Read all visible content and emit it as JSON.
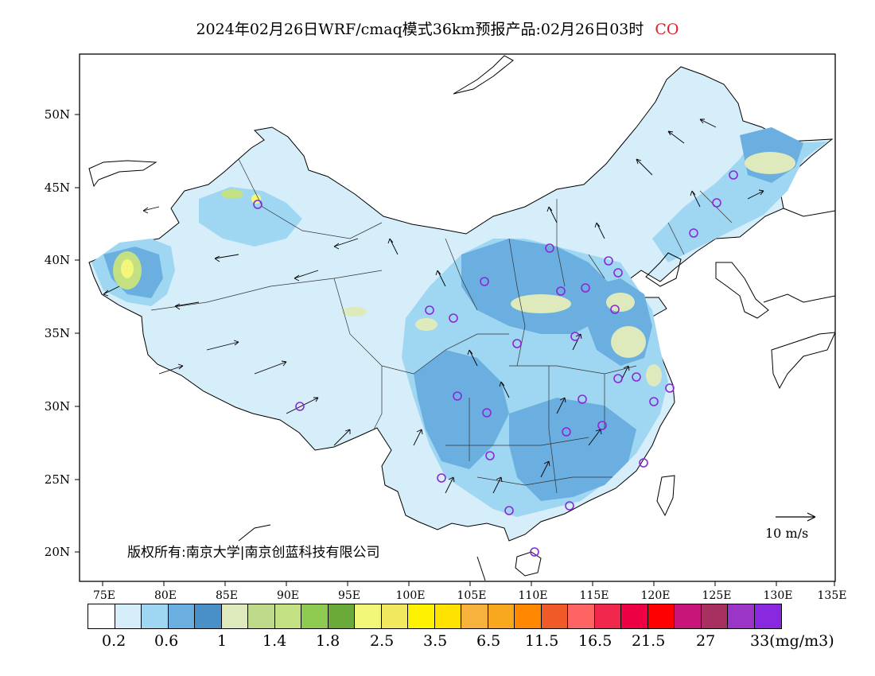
{
  "title": {
    "text": "2024年02月26日WRF/cmaq模式36km预报产品:02月26日03时",
    "species": "CO",
    "species_color": "#e0202a"
  },
  "axes": {
    "lat_labels": [
      "50N",
      "45N",
      "40N",
      "35N",
      "30N",
      "25N",
      "20N"
    ],
    "lon_labels": [
      "75E",
      "80E",
      "85E",
      "90E",
      "95E",
      "100E",
      "105E",
      "110E",
      "115E",
      "120E",
      "125E",
      "130E",
      "135E"
    ]
  },
  "credit": "版权所有:南京大学|南京创蓝科技有限公司",
  "wind_scale_label": "10 m/s",
  "legend": {
    "colors": [
      "#ffffff",
      "#d6eefa",
      "#9fd6f2",
      "#6aafe0",
      "#4a90c8",
      "#dfeabc",
      "#bfd98a",
      "#c3e082",
      "#8fca50",
      "#6aaa38",
      "#f2f77a",
      "#f2e860",
      "#fff200",
      "#ffe200",
      "#f6b23c",
      "#f7a81e",
      "#ff8800",
      "#f05a28",
      "#ff6464",
      "#f0284e",
      "#ee0044",
      "#ff0000",
      "#c8157a",
      "#a83060",
      "#9a35c8",
      "#8a28e0"
    ],
    "labels": [
      "0.2",
      "0.6",
      "1",
      "1.4",
      "1.8",
      "2.5",
      "3.5",
      "6.5",
      "11.5",
      "16.5",
      "21.5",
      "27",
      "33(mg/m3)"
    ]
  },
  "stations_color": "#8a28d8"
}
